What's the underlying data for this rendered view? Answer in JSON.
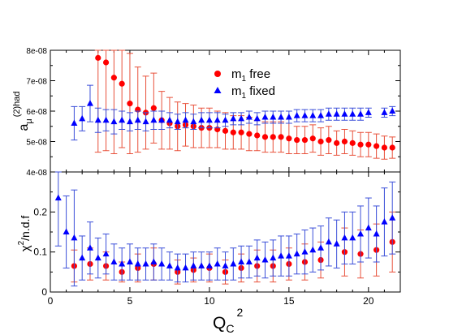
{
  "chart_data": [
    {
      "type": "scatter",
      "panel": "top",
      "ylabel_main": "a",
      "ylabel_sub": "μ",
      "ylabel_sup": "(2)had",
      "ylim": [
        4e-08,
        8e-08
      ],
      "xlim": [
        0,
        22
      ],
      "yticks": [
        4e-08,
        5e-08,
        6e-08,
        7e-08,
        8e-08
      ],
      "ytick_labels": [
        "4e-08",
        "5e-08",
        "6e-08",
        "7e-08",
        "8e-08"
      ],
      "legend_placement": "top-center",
      "series": [
        {
          "name_main": "m",
          "name_sub": "1",
          "name_rest": " free",
          "color": "#ff0000",
          "errcolor": "#e8503a",
          "marker": "circle",
          "x": [
            3,
            3.5,
            4,
            4.5,
            5,
            5.5,
            6,
            6.5,
            7,
            7.5,
            8,
            8.5,
            9,
            9.5,
            10,
            10.5,
            11,
            11.5,
            12,
            12.5,
            13,
            13.5,
            14,
            14.5,
            15,
            15.5,
            16,
            16.5,
            17,
            17.5,
            18,
            18.5,
            19,
            19.5,
            20,
            20.5,
            21,
            21.5
          ],
          "y": [
            7.75e-08,
            7.6e-08,
            7.1e-08,
            6.9e-08,
            6.25e-08,
            6.05e-08,
            5.95e-08,
            6.1e-08,
            5.7e-08,
            5.6e-08,
            5.5e-08,
            5.55e-08,
            5.5e-08,
            5.45e-08,
            5.45e-08,
            5.4e-08,
            5.35e-08,
            5.3e-08,
            5.3e-08,
            5.25e-08,
            5.2e-08,
            5.15e-08,
            5.15e-08,
            5.15e-08,
            5.1e-08,
            5.05e-08,
            5.05e-08,
            5.1e-08,
            5e-08,
            5.05e-08,
            4.95e-08,
            5e-08,
            4.95e-08,
            4.9e-08,
            4.9e-08,
            4.85e-08,
            4.8e-08,
            4.8e-08
          ],
          "yerr": [
            3.1e-08,
            2.9e-08,
            2.5e-08,
            2.1e-08,
            1.65e-08,
            1.4e-08,
            1.2e-08,
            1.15e-08,
            9.5e-09,
            8.5e-09,
            8e-09,
            7e-09,
            7e-09,
            6.5e-09,
            6.5e-09,
            6e-09,
            6e-09,
            5.5e-09,
            5.5e-09,
            5.5e-09,
            5e-09,
            5e-09,
            5e-09,
            5e-09,
            5e-09,
            4.5e-09,
            4.5e-09,
            4.5e-09,
            4.5e-09,
            4.5e-09,
            4e-09,
            4e-09,
            4e-09,
            4e-09,
            4e-09,
            4e-09,
            3.8e-09,
            3.5e-09
          ]
        },
        {
          "name_main": "m",
          "name_sub": "1",
          "name_rest": " fixed",
          "color": "#0000ff",
          "errcolor": "#3b4fd9",
          "marker": "triangle",
          "x": [
            1.5,
            2,
            2.5,
            3,
            3.5,
            4,
            4.5,
            5,
            5.5,
            6,
            6.5,
            7,
            7.5,
            8,
            8.5,
            9,
            9.5,
            10,
            10.5,
            11,
            11.5,
            12,
            12.5,
            13,
            13.5,
            14,
            14.5,
            15,
            15.5,
            16,
            16.5,
            17,
            17.5,
            18,
            18.5,
            19,
            19.5,
            20,
            21,
            21.5
          ],
          "y": [
            5.6e-08,
            5.75e-08,
            6.25e-08,
            5.7e-08,
            5.7e-08,
            5.65e-08,
            5.7e-08,
            5.65e-08,
            5.7e-08,
            5.65e-08,
            5.7e-08,
            5.7e-08,
            5.7e-08,
            5.65e-08,
            5.7e-08,
            5.65e-08,
            5.7e-08,
            5.7e-08,
            5.7e-08,
            5.7e-08,
            5.75e-08,
            5.75e-08,
            5.8e-08,
            5.75e-08,
            5.8e-08,
            5.8e-08,
            5.8e-08,
            5.8e-08,
            5.85e-08,
            5.85e-08,
            5.85e-08,
            5.85e-08,
            5.9e-08,
            5.9e-08,
            5.9e-08,
            5.9e-08,
            5.9e-08,
            5.95e-08,
            5.95e-08,
            6e-08
          ],
          "yerr": [
            5.5e-09,
            4e-09,
            6e-09,
            4e-09,
            3.5e-09,
            4e-09,
            3e-09,
            3e-09,
            3e-09,
            3e-09,
            3e-09,
            3e-09,
            2.5e-09,
            2.5e-09,
            2.5e-09,
            2.5e-09,
            2.5e-09,
            2.5e-09,
            2.5e-09,
            2e-09,
            2e-09,
            2e-09,
            2e-09,
            2e-09,
            2e-09,
            2e-09,
            2e-09,
            2e-09,
            2e-09,
            2e-09,
            2e-09,
            2e-09,
            2e-09,
            2e-09,
            2e-09,
            2e-09,
            2e-09,
            1.5e-09,
            1.5e-09,
            1.5e-09
          ]
        }
      ]
    },
    {
      "type": "scatter",
      "panel": "bottom",
      "ylabel_main": "χ",
      "ylabel_sup": "2",
      "ylabel_rest": "/n.d.f",
      "xlabel_main": "Q",
      "xlabel_sub": "C",
      "xlabel_sup": "2",
      "ylim": [
        0,
        0.3
      ],
      "xlim": [
        0,
        22
      ],
      "yticks": [
        0,
        0.1,
        0.2
      ],
      "ytick_labels": [
        "0",
        "0.1",
        "0.2"
      ],
      "xticks": [
        0,
        5,
        10,
        15,
        20
      ],
      "xtick_labels": [
        "0",
        "5",
        "10",
        "15",
        "20"
      ],
      "series": [
        {
          "color": "#ff0000",
          "errcolor": "#e8503a",
          "marker": "circle",
          "x": [
            1.5,
            2.5,
            3.5,
            4.5,
            5.5,
            6.5,
            8,
            9,
            10,
            11,
            12,
            13,
            14,
            15,
            16,
            17,
            18.5,
            19.5,
            20.5,
            21.5
          ],
          "y": [
            0.065,
            0.07,
            0.065,
            0.05,
            0.06,
            0.07,
            0.05,
            0.055,
            0.06,
            0.05,
            0.06,
            0.065,
            0.065,
            0.07,
            0.075,
            0.08,
            0.1,
            0.095,
            0.105,
            0.125
          ],
          "yerr": [
            0.04,
            0.04,
            0.035,
            0.025,
            0.035,
            0.04,
            0.03,
            0.03,
            0.035,
            0.03,
            0.035,
            0.04,
            0.04,
            0.04,
            0.045,
            0.045,
            0.06,
            0.06,
            0.065,
            0.075
          ]
        },
        {
          "color": "#0000ff",
          "errcolor": "#3b4fd9",
          "marker": "triangle",
          "x": [
            0.5,
            1,
            1.5,
            2,
            2.5,
            3,
            3.5,
            4,
            4.5,
            5,
            5.5,
            6,
            6.5,
            7,
            7.5,
            8,
            8.5,
            9,
            9.5,
            10,
            10.5,
            11,
            11.5,
            12,
            12.5,
            13,
            13.5,
            14,
            14.5,
            15,
            15.5,
            16,
            16.5,
            17,
            17.5,
            18,
            18.5,
            19,
            19.5,
            20,
            20.5,
            21,
            21.5
          ],
          "y": [
            0.235,
            0.15,
            0.135,
            0.085,
            0.11,
            0.085,
            0.095,
            0.075,
            0.07,
            0.075,
            0.07,
            0.07,
            0.075,
            0.07,
            0.065,
            0.06,
            0.06,
            0.065,
            0.065,
            0.065,
            0.07,
            0.065,
            0.07,
            0.075,
            0.075,
            0.085,
            0.08,
            0.085,
            0.09,
            0.09,
            0.095,
            0.1,
            0.105,
            0.11,
            0.125,
            0.12,
            0.135,
            0.135,
            0.145,
            0.16,
            0.145,
            0.175,
            0.185
          ],
          "yerr": [
            0.12,
            0.09,
            0.12,
            0.055,
            0.065,
            0.05,
            0.05,
            0.045,
            0.04,
            0.045,
            0.04,
            0.04,
            0.045,
            0.04,
            0.035,
            0.035,
            0.035,
            0.035,
            0.035,
            0.035,
            0.04,
            0.035,
            0.04,
            0.04,
            0.04,
            0.045,
            0.045,
            0.045,
            0.05,
            0.05,
            0.05,
            0.055,
            0.055,
            0.055,
            0.06,
            0.06,
            0.065,
            0.065,
            0.07,
            0.075,
            0.07,
            0.085,
            0.09
          ]
        }
      ]
    }
  ]
}
